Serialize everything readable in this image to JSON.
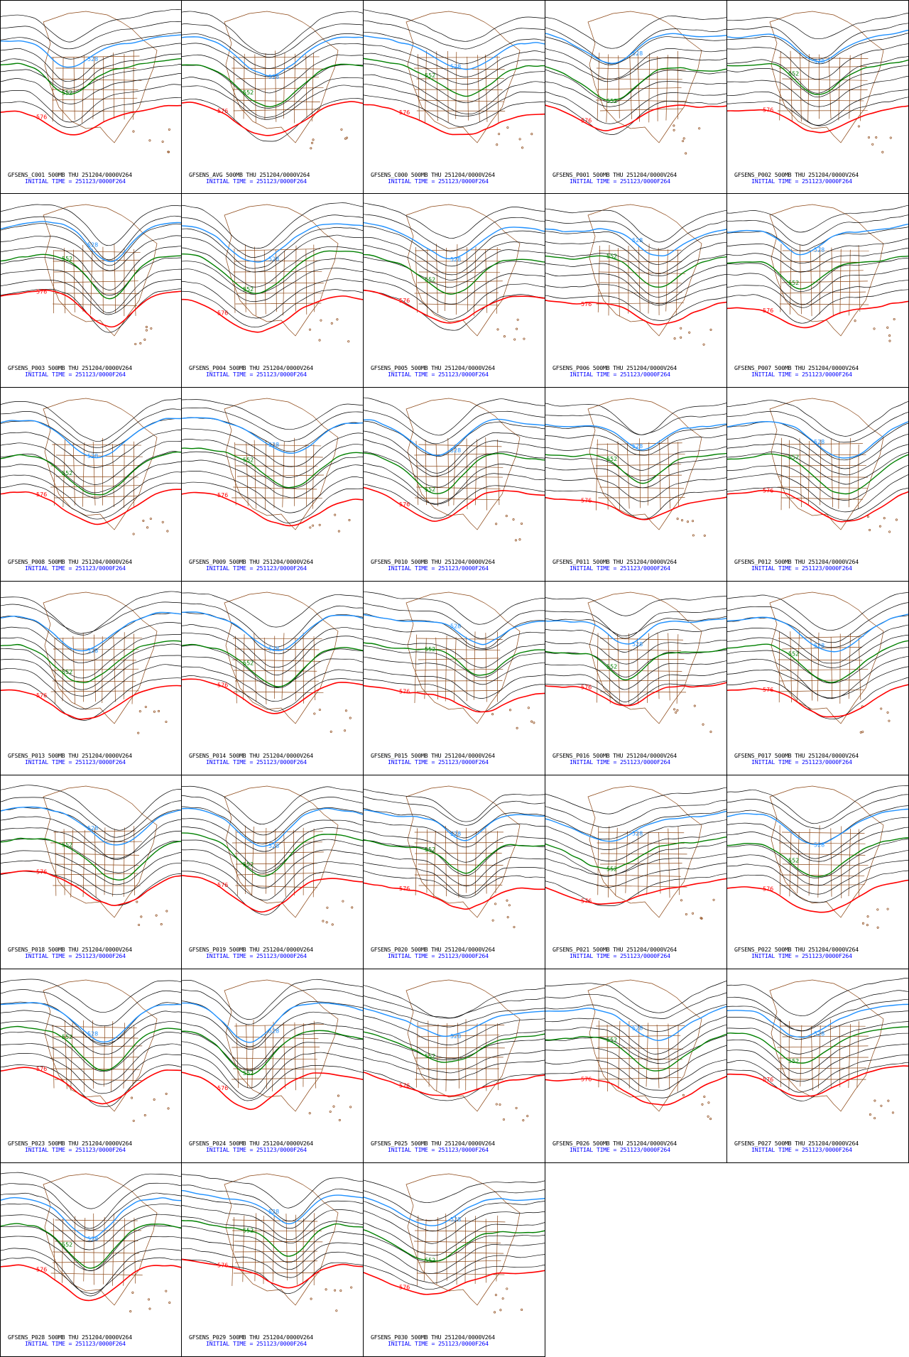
{
  "caption": {
    "valid_suffix": "500MB THU 251204/0000V264",
    "initial_time": "INITIAL TIME = 251123/0000F264"
  },
  "contour_labels": {
    "blue": "528",
    "green": "552",
    "red": "576"
  },
  "colors": {
    "black_contour": "#000000",
    "blue_contour": "#1e90ff",
    "green_contour": "#008000",
    "red_contour": "#ff0000",
    "geography": "#8b4513",
    "caption_top": "#000000",
    "caption_bottom": "#0000ff"
  },
  "panels": [
    {
      "title": "GFSENS_C001"
    },
    {
      "title": "GFSENS_AVG"
    },
    {
      "title": "GFSENS_C000"
    },
    {
      "title": "GFSENS_P001"
    },
    {
      "title": "GFSENS_P002"
    },
    {
      "title": "GFSENS_P003"
    },
    {
      "title": "GFSENS_P004"
    },
    {
      "title": "GFSENS_P005"
    },
    {
      "title": "GFSENS_P006"
    },
    {
      "title": "GFSENS_P007"
    },
    {
      "title": "GFSENS_P008"
    },
    {
      "title": "GFSENS_P009"
    },
    {
      "title": "GFSENS_P010"
    },
    {
      "title": "GFSENS_P011"
    },
    {
      "title": "GFSENS_P012"
    },
    {
      "title": "GFSENS_P013"
    },
    {
      "title": "GFSENS_P014"
    },
    {
      "title": "GFSENS_P015"
    },
    {
      "title": "GFSENS_P016"
    },
    {
      "title": "GFSENS_P017"
    },
    {
      "title": "GFSENS_P018"
    },
    {
      "title": "GFSENS_P019"
    },
    {
      "title": "GFSENS_P020"
    },
    {
      "title": "GFSENS_P021"
    },
    {
      "title": "GFSENS_P022"
    },
    {
      "title": "GFSENS_P023"
    },
    {
      "title": "GFSENS_P024"
    },
    {
      "title": "GFSENS_P025"
    },
    {
      "title": "GFSENS_P026"
    },
    {
      "title": "GFSENS_P027"
    },
    {
      "title": "GFSENS_P028"
    },
    {
      "title": "GFSENS_P029"
    },
    {
      "title": "GFSENS_P030"
    }
  ]
}
